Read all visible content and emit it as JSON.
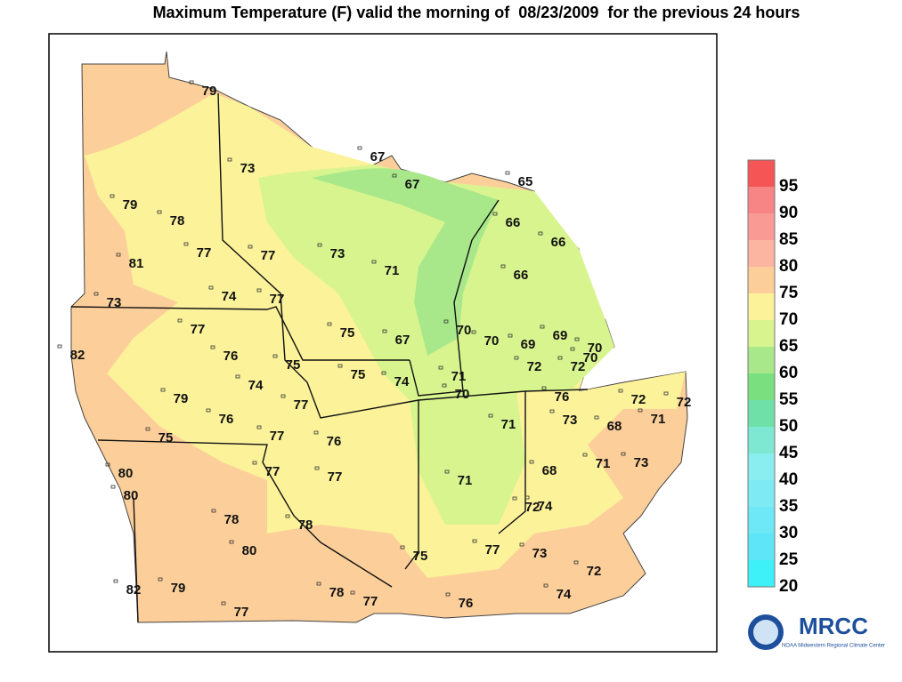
{
  "title": "Maximum Temperature (F) valid the morning of  08/23/2009  for the previous 24 hours",
  "stations": [
    79,
    73,
    79,
    78,
    81,
    77,
    77,
    73,
    71,
    74,
    77,
    73,
    77,
    75,
    67,
    82,
    76,
    75,
    75,
    74,
    74,
    79,
    77,
    76,
    75,
    77,
    76,
    80,
    80,
    77,
    77,
    78,
    78,
    80,
    82,
    79,
    78,
    77,
    77,
    75,
    76,
    77,
    73,
    72,
    74,
    72,
    74,
    71,
    68,
    71,
    73,
    68,
    73,
    71,
    72,
    71,
    72,
    76,
    70,
    71,
    72,
    72,
    70,
    70,
    69,
    69,
    70,
    70,
    66,
    66,
    66,
    65,
    67,
    67
  ],
  "legend": {
    "ticks": [
      95,
      90,
      85,
      80,
      75,
      70,
      65,
      60,
      55,
      50,
      45,
      40,
      35,
      30,
      25,
      20
    ],
    "colors": [
      "#f65555",
      "#f88585",
      "#f99a95",
      "#fbb5a0",
      "#fccf9a",
      "#fbf29a",
      "#d8f48e",
      "#a8e88a",
      "#7ae07f",
      "#6fe0a8",
      "#7ee8d2",
      "#8aeef0",
      "#7eebf4",
      "#6ee8f6",
      "#5ee6f8",
      "#3ef0f8"
    ]
  },
  "logo": {
    "name": "MRCC",
    "subtitle": "NOAA Midwestern Regional Climate Center"
  }
}
